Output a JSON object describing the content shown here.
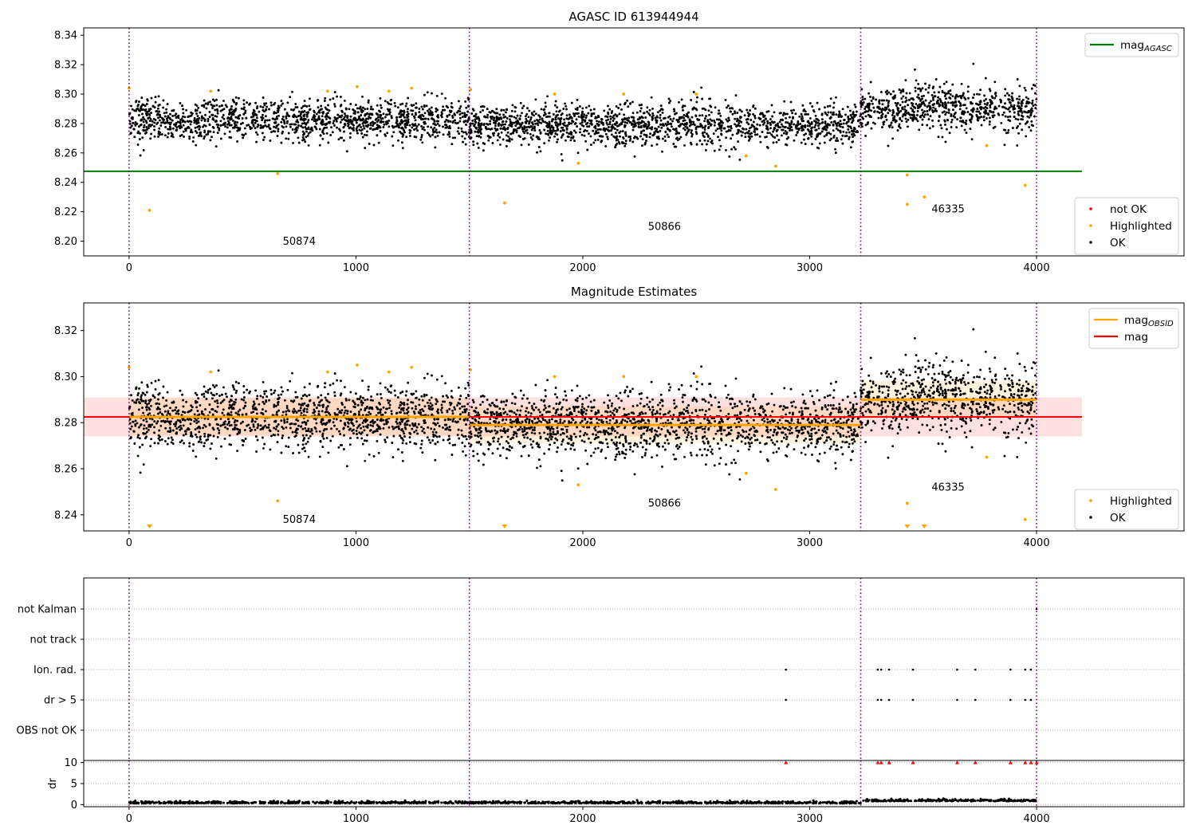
{
  "colors": {
    "ok": "#000000",
    "highlighted": "#ffa500",
    "not_ok": "#ff0000",
    "agasc_line": "#008000",
    "obs_line": "#ffa500",
    "mag_line": "#ff0000",
    "obs_boundary": "#800080"
  },
  "chart_data": [
    {
      "id": "agasc_panel",
      "type": "scatter",
      "title": "AGASC ID 613944944",
      "xlim": [
        -200,
        4650
      ],
      "ylim": [
        8.19,
        8.345
      ],
      "xticks": [
        0,
        1000,
        2000,
        3000,
        4000
      ],
      "yticks": [
        8.2,
        8.22,
        8.24,
        8.26,
        8.28,
        8.3,
        8.32,
        8.34
      ],
      "grid": false,
      "obs_boundaries": [
        0,
        1500,
        3225,
        4000
      ],
      "obsid_labels": [
        {
          "text": "50874",
          "x": 750,
          "y": 8.1975
        },
        {
          "text": "50866",
          "x": 2360,
          "y": 8.2075
        },
        {
          "text": "46335",
          "x": 3610,
          "y": 8.2195
        }
      ],
      "segments": [
        {
          "x0": 0,
          "x1": 1500,
          "mean": 8.282,
          "spread": 0.0075
        },
        {
          "x0": 1500,
          "x1": 3225,
          "mean": 8.279,
          "spread": 0.0075
        },
        {
          "x0": 3225,
          "x1": 4000,
          "mean": 8.29,
          "spread": 0.0085
        }
      ],
      "highlighted_points": [
        {
          "x": 0,
          "y": 8.304
        },
        {
          "x": 90,
          "y": 8.221
        },
        {
          "x": 360,
          "y": 8.302
        },
        {
          "x": 655,
          "y": 8.246
        },
        {
          "x": 875,
          "y": 8.302
        },
        {
          "x": 1005,
          "y": 8.305
        },
        {
          "x": 1145,
          "y": 8.302
        },
        {
          "x": 1245,
          "y": 8.304
        },
        {
          "x": 1505,
          "y": 8.303
        },
        {
          "x": 1655,
          "y": 8.226
        },
        {
          "x": 1875,
          "y": 8.3
        },
        {
          "x": 1980,
          "y": 8.253
        },
        {
          "x": 2180,
          "y": 8.3
        },
        {
          "x": 2500,
          "y": 8.3
        },
        {
          "x": 2720,
          "y": 8.258
        },
        {
          "x": 2850,
          "y": 8.251
        },
        {
          "x": 3430,
          "y": 8.245
        },
        {
          "x": 3430,
          "y": 8.225
        },
        {
          "x": 3505,
          "y": 8.23
        },
        {
          "x": 3780,
          "y": 8.265
        },
        {
          "x": 3950,
          "y": 8.238
        }
      ],
      "reference_lines": [
        {
          "y": 8.2475,
          "x0": -200,
          "x1": 4200,
          "color": "#008000"
        }
      ],
      "legend_top": {
        "placement": "upper-right",
        "entries": [
          {
            "label": "mag",
            "sub": "AGASC",
            "kind": "line",
            "color": "#008000"
          }
        ]
      },
      "legend_bottom": {
        "placement": "lower-right",
        "entries": [
          {
            "label": "not OK",
            "kind": "dot",
            "color": "#ff0000"
          },
          {
            "label": "Highlighted",
            "kind": "dot",
            "color": "#ffa500"
          },
          {
            "label": "OK",
            "kind": "dot",
            "color": "#000000"
          }
        ]
      }
    },
    {
      "id": "estimates_panel",
      "type": "scatter",
      "title": "Magnitude Estimates",
      "xlim": [
        -200,
        4650
      ],
      "ylim": [
        8.233,
        8.332
      ],
      "xticks": [
        0,
        1000,
        2000,
        3000,
        4000
      ],
      "yticks": [
        8.24,
        8.26,
        8.28,
        8.3,
        8.32
      ],
      "grid": false,
      "obs_boundaries": [
        0,
        1500,
        3225,
        4000
      ],
      "obsid_labels": [
        {
          "text": "50874",
          "x": 750,
          "y": 8.2365
        },
        {
          "text": "50866",
          "x": 2360,
          "y": 8.2435
        },
        {
          "text": "46335",
          "x": 3610,
          "y": 8.2505
        }
      ],
      "segments": [
        {
          "x0": 0,
          "x1": 1500,
          "mean": 8.282,
          "spread": 0.0075
        },
        {
          "x0": 1500,
          "x1": 3225,
          "mean": 8.279,
          "spread": 0.0075
        },
        {
          "x0": 3225,
          "x1": 4000,
          "mean": 8.29,
          "spread": 0.0085
        }
      ],
      "highlighted_points": [
        {
          "x": 0,
          "y": 8.304
        },
        {
          "x": 360,
          "y": 8.302
        },
        {
          "x": 655,
          "y": 8.246
        },
        {
          "x": 875,
          "y": 8.302
        },
        {
          "x": 1005,
          "y": 8.305
        },
        {
          "x": 1145,
          "y": 8.302
        },
        {
          "x": 1245,
          "y": 8.304
        },
        {
          "x": 1505,
          "y": 8.303
        },
        {
          "x": 1875,
          "y": 8.3
        },
        {
          "x": 1980,
          "y": 8.253
        },
        {
          "x": 2180,
          "y": 8.3
        },
        {
          "x": 2500,
          "y": 8.3
        },
        {
          "x": 2720,
          "y": 8.258
        },
        {
          "x": 2850,
          "y": 8.251
        },
        {
          "x": 3430,
          "y": 8.245
        },
        {
          "x": 3780,
          "y": 8.265
        },
        {
          "x": 3950,
          "y": 8.238
        }
      ],
      "offscale_markers": [
        {
          "x": 90
        },
        {
          "x": 1655
        },
        {
          "x": 3430
        },
        {
          "x": 3505
        }
      ],
      "mag_band": {
        "y": 8.2825,
        "low": 8.274,
        "high": 8.291,
        "x0": -200,
        "x1": 4200
      },
      "obs_lines": [
        {
          "x0": 0,
          "x1": 1500,
          "y": 8.2825
        },
        {
          "x0": 1500,
          "x1": 3225,
          "y": 8.279
        },
        {
          "x0": 3225,
          "x1": 4000,
          "y": 8.29
        }
      ],
      "legend_top": {
        "placement": "upper-right",
        "entries": [
          {
            "label": "mag",
            "sub": "OBSID",
            "kind": "line",
            "color": "#ffa500"
          },
          {
            "label": "mag",
            "kind": "line",
            "color": "#ff0000"
          }
        ]
      },
      "legend_bottom": {
        "placement": "lower-right",
        "entries": [
          {
            "label": "Highlighted",
            "kind": "dot",
            "color": "#ffa500"
          },
          {
            "label": "OK",
            "kind": "dot",
            "color": "#000000"
          }
        ]
      }
    },
    {
      "id": "flags_panel",
      "type": "scatter",
      "xlim": [
        -200,
        4650
      ],
      "categories": [
        "not Kalman",
        "not track",
        "Ion. rad.",
        "dr > 5",
        "OBS not OK"
      ],
      "grid": true,
      "obs_boundaries": [
        0,
        1500,
        3225,
        4000
      ],
      "flag_points": [
        {
          "category": "not Kalman",
          "x": 4000
        },
        {
          "category": "Ion. rad.",
          "x": 2895
        },
        {
          "category": "Ion. rad.",
          "x": 3300
        },
        {
          "category": "Ion. rad.",
          "x": 3315
        },
        {
          "category": "Ion. rad.",
          "x": 3350
        },
        {
          "category": "Ion. rad.",
          "x": 3455
        },
        {
          "category": "Ion. rad.",
          "x": 3650
        },
        {
          "category": "Ion. rad.",
          "x": 3730
        },
        {
          "category": "Ion. rad.",
          "x": 3885
        },
        {
          "category": "Ion. rad.",
          "x": 3950
        },
        {
          "category": "Ion. rad.",
          "x": 3975
        },
        {
          "category": "dr > 5",
          "x": 2895
        },
        {
          "category": "dr > 5",
          "x": 3300
        },
        {
          "category": "dr > 5",
          "x": 3315
        },
        {
          "category": "dr > 5",
          "x": 3350
        },
        {
          "category": "dr > 5",
          "x": 3455
        },
        {
          "category": "dr > 5",
          "x": 3650
        },
        {
          "category": "dr > 5",
          "x": 3730
        },
        {
          "category": "dr > 5",
          "x": 3885
        },
        {
          "category": "dr > 5",
          "x": 3950
        },
        {
          "category": "dr > 5",
          "x": 3975
        }
      ]
    },
    {
      "id": "dr_panel",
      "type": "scatter",
      "ylabel": "dr",
      "xlim": [
        -200,
        4650
      ],
      "ylim": [
        -0.5,
        10.5
      ],
      "xticks": [
        0,
        1000,
        2000,
        3000,
        4000
      ],
      "yticks": [
        0,
        5,
        10
      ],
      "grid": true,
      "obs_boundaries": [
        0,
        1500,
        3225,
        4000
      ],
      "dr_baseline": 0.3,
      "dr_baseline_late": 0.8,
      "clipped_markers": [
        {
          "x": 2895
        },
        {
          "x": 3300
        },
        {
          "x": 3315
        },
        {
          "x": 3350
        },
        {
          "x": 3455
        },
        {
          "x": 3650
        },
        {
          "x": 3730
        },
        {
          "x": 3885
        },
        {
          "x": 3950
        },
        {
          "x": 3975
        },
        {
          "x": 4000
        }
      ]
    }
  ]
}
